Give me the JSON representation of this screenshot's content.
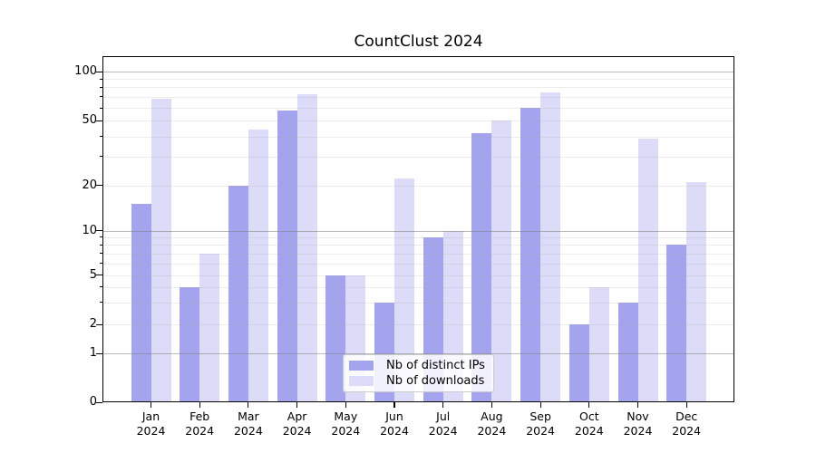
{
  "chart_data": {
    "type": "bar",
    "title": "CountClust 2024",
    "categories": [
      "Jan",
      "Feb",
      "Mar",
      "Apr",
      "May",
      "Jun",
      "Jul",
      "Aug",
      "Sep",
      "Oct",
      "Nov",
      "Dec"
    ],
    "x_sublabel": "2024",
    "series": [
      {
        "name": "Nb of distinct IPs",
        "color": "#a4a4ee",
        "values": [
          15,
          4,
          20,
          58,
          5,
          3,
          9,
          42,
          60,
          2,
          3,
          8
        ]
      },
      {
        "name": "Nb of downloads",
        "color": "#dcdcf8",
        "values": [
          68,
          7,
          44,
          73,
          5,
          22,
          10,
          50,
          75,
          4,
          39,
          21
        ]
      }
    ],
    "yscale": "quasi-log (asinh-like), linear 0-1 then logarithmic",
    "ylim": [
      0,
      123
    ],
    "yticks": [
      0,
      1,
      2,
      5,
      10,
      20,
      50,
      100
    ],
    "ytick_labels": [
      "0",
      "1",
      "2",
      "5",
      "10",
      "20",
      "50",
      "100"
    ],
    "major_gridlines": [
      1,
      10,
      100
    ],
    "minor_gridlines": [
      2,
      3,
      4,
      5,
      6,
      7,
      8,
      9,
      20,
      30,
      40,
      50,
      60,
      70,
      80,
      90
    ],
    "grid": "horizontal only",
    "legend_position": "lower center"
  }
}
